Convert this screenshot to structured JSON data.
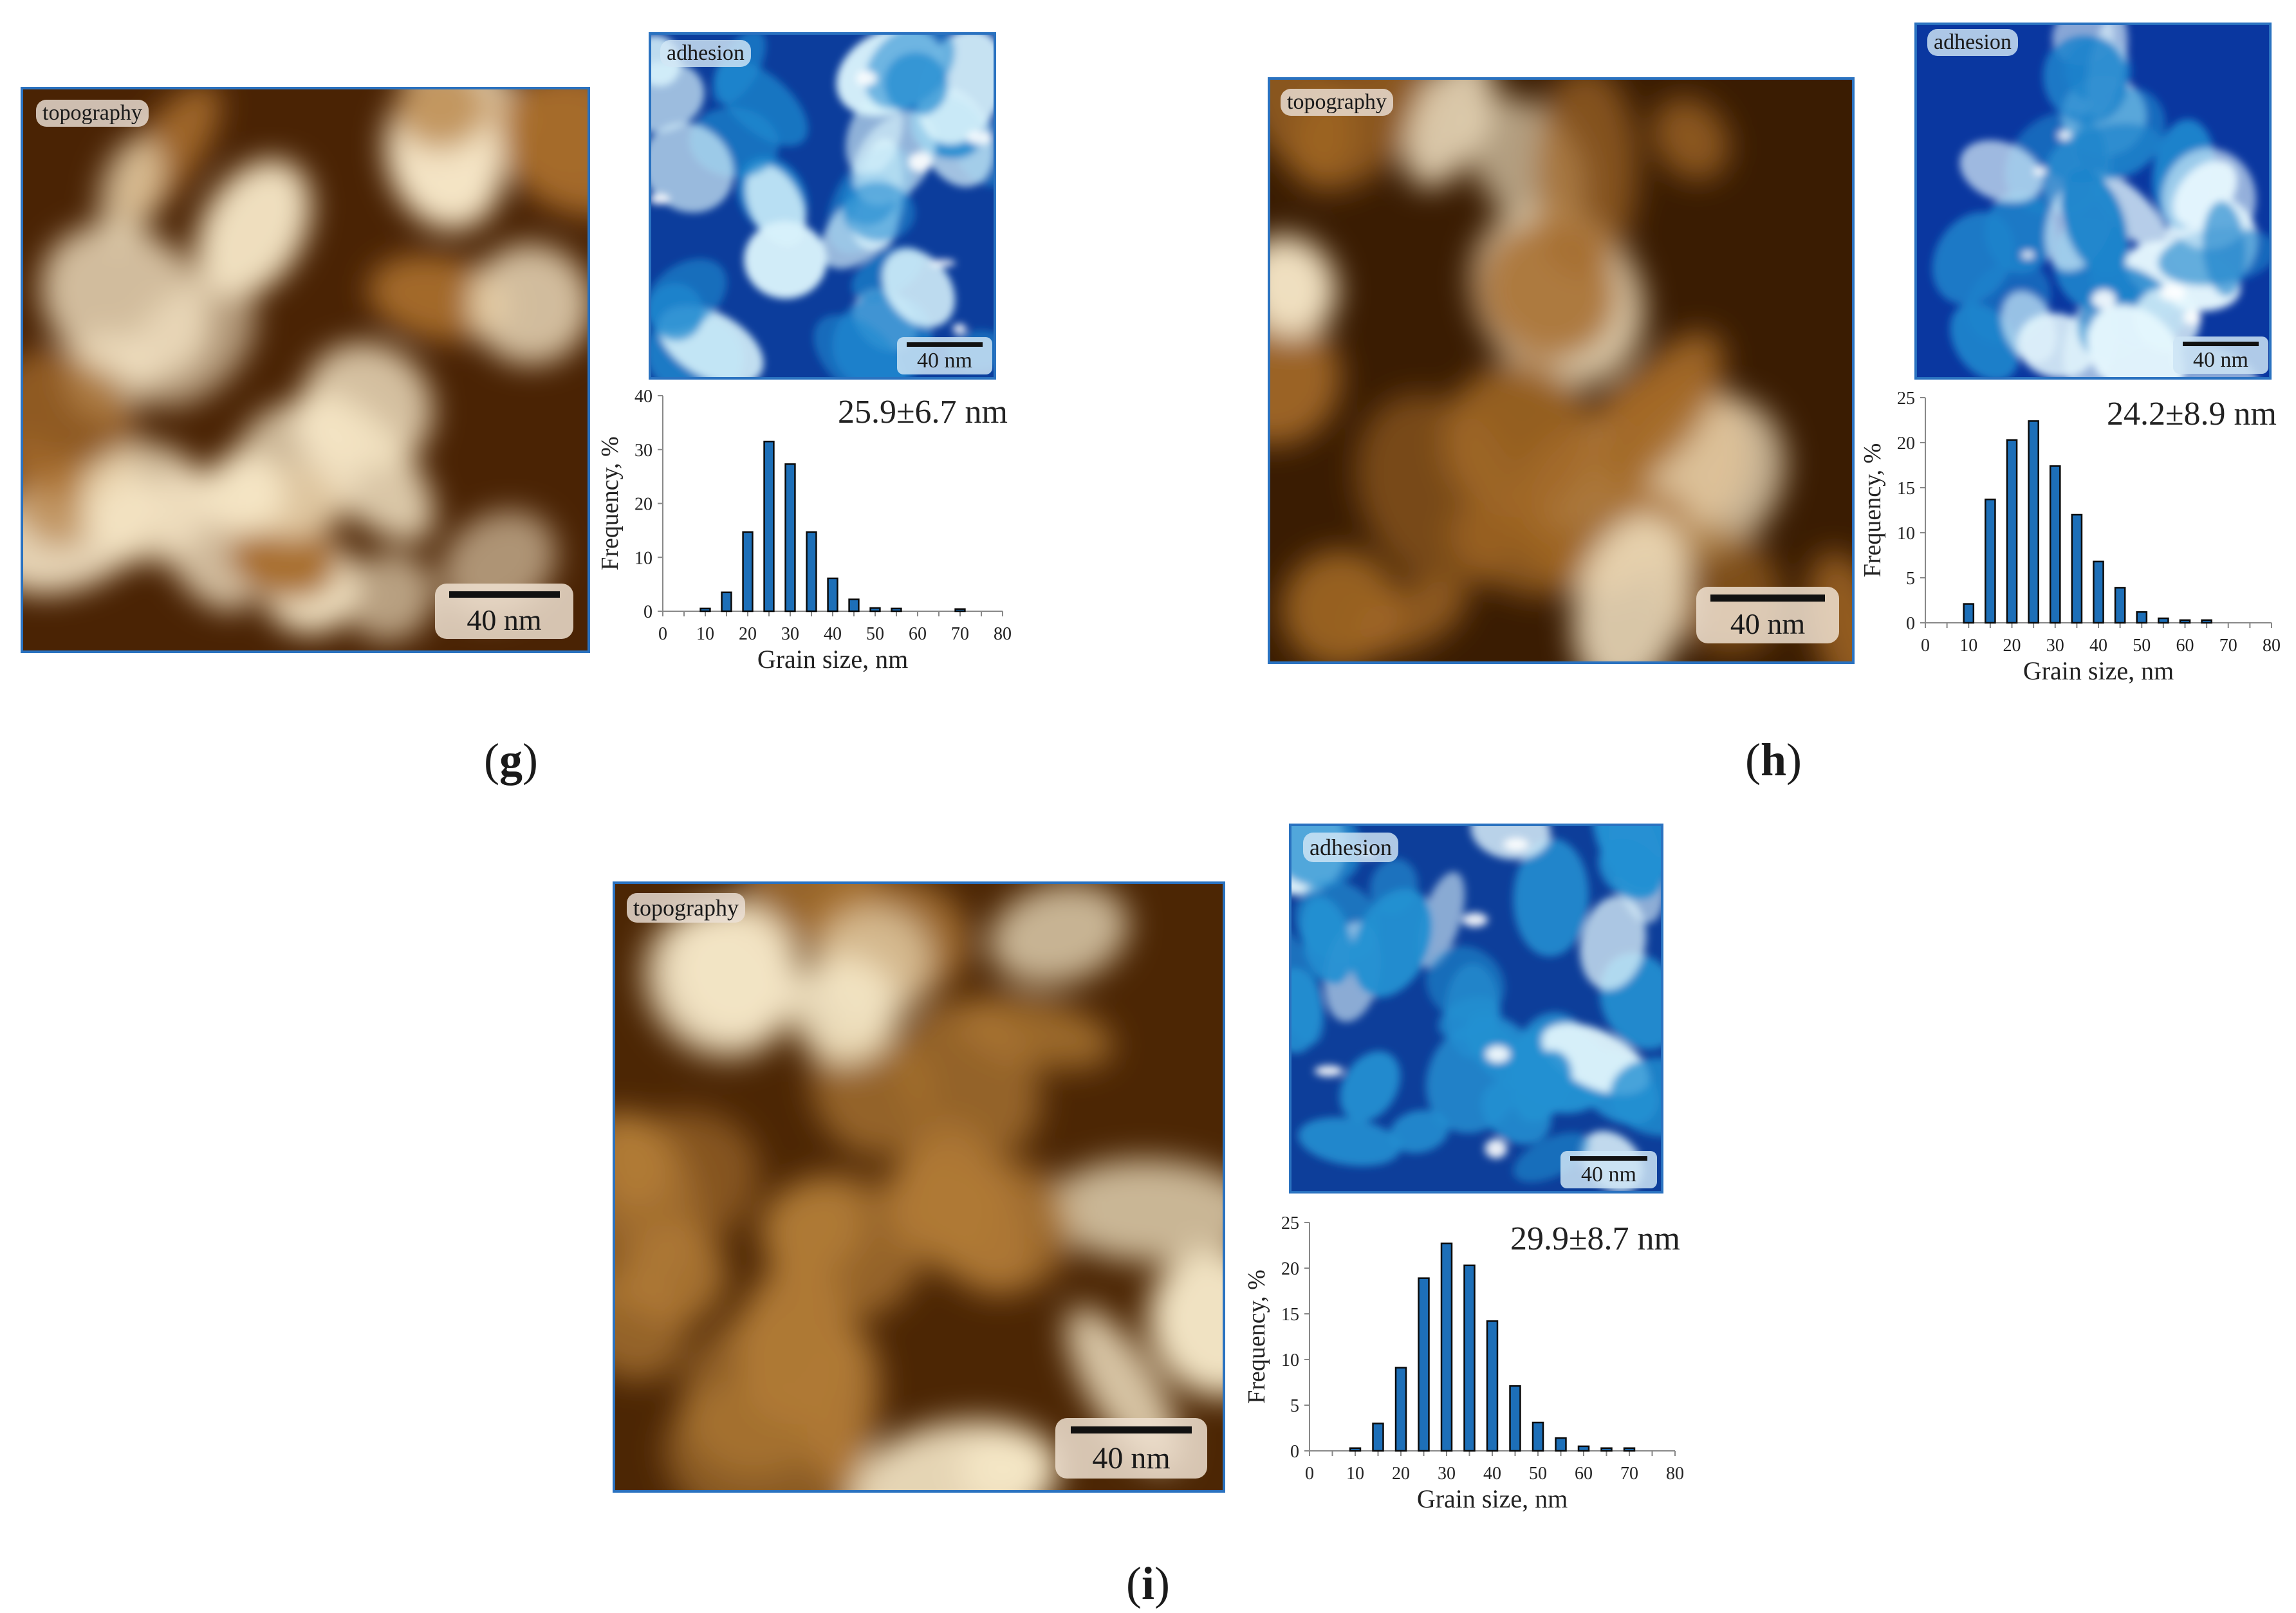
{
  "panels": [
    {
      "id": "g",
      "caption": "g",
      "topo_label": "topography",
      "topo_scale": "40 nm",
      "adh_label": "adhesion",
      "adh_scale": "40 nm",
      "colors": {
        "topo_dark": "#4a2304",
        "topo_mid": "#a86d2c",
        "topo_light": "#f6e6c6",
        "adh_dark": "#0c3d9c",
        "adh_mid": "#1f8ad0",
        "adh_light": "#d8f2fb"
      },
      "chart_data": {
        "type": "bar",
        "annotation": "25.9±6.7 nm",
        "xlabel": "Grain size, nm",
        "ylabel": "Frequency, %",
        "xlim": [
          0,
          80
        ],
        "ylim": [
          0,
          40
        ],
        "xticks": [
          0,
          10,
          20,
          30,
          40,
          50,
          60,
          70,
          80
        ],
        "yticks": [
          0,
          10,
          20,
          30,
          40
        ],
        "x": [
          10,
          15,
          20,
          25,
          30,
          35,
          40,
          45,
          50,
          55,
          70
        ],
        "values": [
          0.5,
          3.5,
          14.7,
          31.5,
          27.3,
          14.7,
          6.1,
          2.2,
          0.6,
          0.5,
          0.4
        ]
      }
    },
    {
      "id": "h",
      "caption": "h",
      "topo_label": "topography",
      "topo_scale": "40 nm",
      "adh_label": "adhesion",
      "adh_scale": "40 nm",
      "colors": {
        "topo_dark": "#3a1c02",
        "topo_mid": "#a26826",
        "topo_light": "#f2e2c2",
        "adh_dark": "#0a37a0",
        "adh_mid": "#1c84cc",
        "adh_light": "#e4f6fd"
      },
      "chart_data": {
        "type": "bar",
        "annotation": "24.2±8.9 nm",
        "xlabel": "Grain size, nm",
        "ylabel": "Frequency, %",
        "xlim": [
          0,
          80
        ],
        "ylim": [
          0,
          25
        ],
        "xticks": [
          0,
          10,
          20,
          30,
          40,
          50,
          60,
          70,
          80
        ],
        "yticks": [
          0,
          5,
          10,
          15,
          20,
          25
        ],
        "x": [
          10,
          15,
          20,
          25,
          30,
          35,
          40,
          45,
          50,
          55,
          60,
          65
        ],
        "values": [
          2.1,
          13.7,
          20.3,
          22.4,
          17.4,
          12.0,
          6.8,
          3.9,
          1.2,
          0.5,
          0.3,
          0.3
        ]
      }
    },
    {
      "id": "i",
      "caption": "i",
      "topo_label": "topography",
      "topo_scale": "40 nm",
      "adh_label": "adhesion",
      "adh_scale": "40 nm",
      "colors": {
        "topo_dark": "#4c2604",
        "topo_mid": "#b07a36",
        "topo_light": "#f6e8c8",
        "adh_dark": "#0d3e9a",
        "adh_mid": "#2390d2",
        "adh_light": "#e0f4fb"
      },
      "chart_data": {
        "type": "bar",
        "annotation": "29.9±8.7 nm",
        "xlabel": "Grain size, nm",
        "ylabel": "Frequency, %",
        "xlim": [
          0,
          80
        ],
        "ylim": [
          0,
          25
        ],
        "xticks": [
          0,
          10,
          20,
          30,
          40,
          50,
          60,
          70,
          80
        ],
        "yticks": [
          0,
          5,
          10,
          15,
          20,
          25
        ],
        "x": [
          10,
          15,
          20,
          25,
          30,
          35,
          40,
          45,
          50,
          55,
          60,
          65,
          70
        ],
        "values": [
          0.3,
          3.0,
          9.1,
          18.9,
          22.7,
          20.3,
          14.2,
          7.1,
          3.1,
          1.4,
          0.5,
          0.3,
          0.3
        ]
      }
    }
  ]
}
